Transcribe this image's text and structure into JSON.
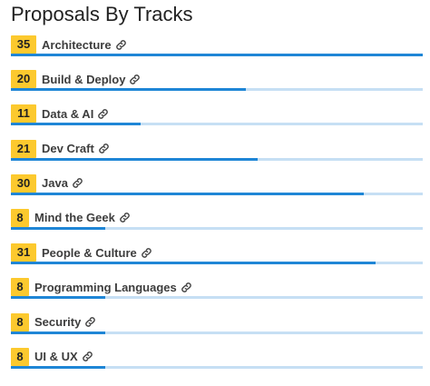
{
  "page": {
    "title": "Proposals By Tracks"
  },
  "colors": {
    "badge": "#fcc92e",
    "bar_fill": "#1f86d6",
    "bar_background": "#c6dff4"
  },
  "icons": {
    "track_link": "link-icon"
  },
  "tracks": [
    {
      "count": "35",
      "name": "Architecture",
      "fill_fraction": 1.0
    },
    {
      "count": "20",
      "name": "Build & Deploy",
      "fill_fraction": 0.571
    },
    {
      "count": "11",
      "name": "Data & AI",
      "fill_fraction": 0.314
    },
    {
      "count": "21",
      "name": "Dev Craft",
      "fill_fraction": 0.6
    },
    {
      "count": "30",
      "name": "Java",
      "fill_fraction": 0.857
    },
    {
      "count": "8",
      "name": "Mind the Geek",
      "fill_fraction": 0.229
    },
    {
      "count": "31",
      "name": "People & Culture",
      "fill_fraction": 0.886
    },
    {
      "count": "8",
      "name": "Programming Languages",
      "fill_fraction": 0.229
    },
    {
      "count": "8",
      "name": "Security",
      "fill_fraction": 0.229
    },
    {
      "count": "8",
      "name": "UI & UX",
      "fill_fraction": 0.229
    }
  ]
}
